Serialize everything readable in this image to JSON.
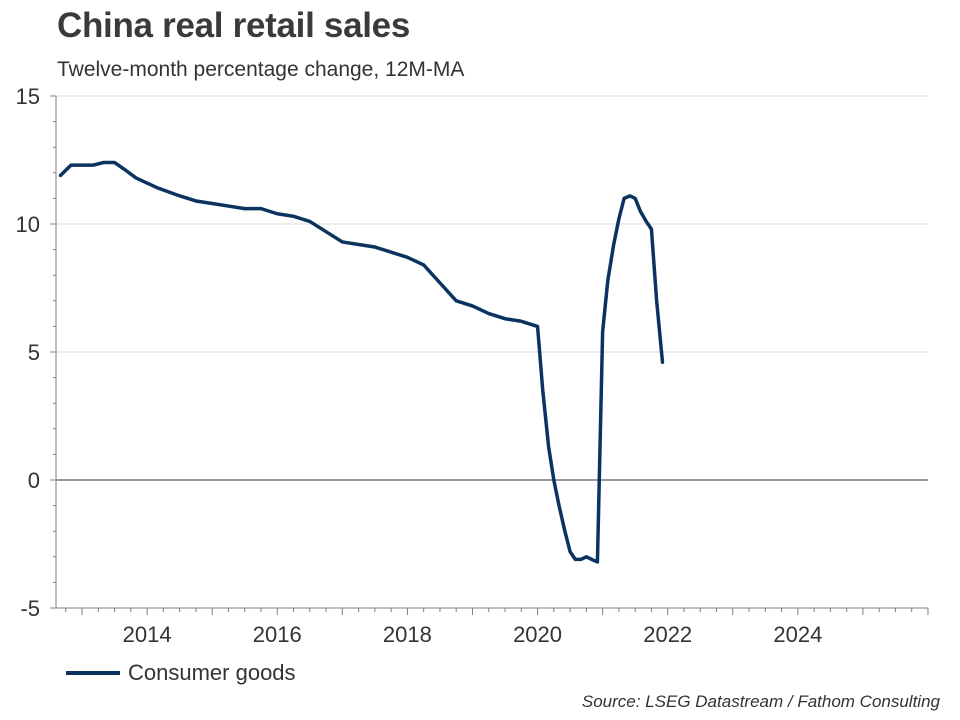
{
  "title": "China real retail sales",
  "subtitle": "Twelve-month percentage change, 12M-MA",
  "source": "Source: LSEG Datastream / Fathom Consulting",
  "colors": {
    "series": "#0b3360",
    "grid": "#d9d9d9",
    "axis": "#7f7f7f",
    "zero": "#333333"
  },
  "chart_data": {
    "type": "line",
    "title": "China real retail sales",
    "subtitle": "Twelve-month percentage change, 12M-MA",
    "xlabel": "",
    "ylabel": "",
    "xlim": [
      2012.6,
      2026.0
    ],
    "ylim": [
      -5,
      15
    ],
    "yticks": [
      15,
      10,
      5,
      0,
      -5
    ],
    "xticks": [
      2014,
      2016,
      2018,
      2020,
      2022,
      2024
    ],
    "grid": true,
    "legend_position": "bottom-left",
    "series": [
      {
        "name": "Consumer goods",
        "x": [
          2012.67,
          2012.83,
          2013.0,
          2013.17,
          2013.33,
          2013.5,
          2013.67,
          2013.83,
          2014.0,
          2014.17,
          2014.5,
          2014.75,
          2015.0,
          2015.25,
          2015.5,
          2015.75,
          2016.0,
          2016.25,
          2016.5,
          2016.75,
          2017.0,
          2017.25,
          2017.5,
          2017.75,
          2018.0,
          2018.25,
          2018.5,
          2018.75,
          2019.0,
          2019.25,
          2019.5,
          2019.75,
          2020.0,
          2020.08,
          2020.17,
          2020.25,
          2020.33,
          2020.42,
          2020.5,
          2020.58,
          2020.67,
          2020.75,
          2020.83,
          2020.92,
          2021.0,
          2021.08,
          2021.17,
          2021.25,
          2021.33,
          2021.42,
          2021.5,
          2021.58,
          2021.67,
          2021.75,
          2021.83,
          2021.92,
          2022.0,
          2022.08,
          2022.17,
          2022.25
        ],
        "values": [
          11.9,
          12.3,
          12.3,
          12.3,
          12.4,
          12.4,
          12.1,
          11.8,
          11.6,
          11.4,
          11.1,
          10.9,
          10.8,
          10.7,
          10.6,
          10.6,
          10.4,
          10.3,
          10.1,
          9.7,
          9.3,
          9.2,
          9.1,
          8.9,
          8.7,
          8.4,
          7.7,
          7.0,
          6.8,
          6.5,
          6.3,
          6.2,
          6.0,
          3.5,
          1.3,
          0.0,
          -1.0,
          -2.0,
          -2.8,
          -3.1,
          -3.1,
          -3.0,
          -3.1,
          -3.2,
          5.8,
          7.8,
          9.2,
          10.2,
          11.0,
          11.1,
          11.0,
          10.5,
          10.1,
          9.8,
          7.0,
          4.6,
          null,
          null,
          null,
          null
        ]
      }
    ]
  }
}
